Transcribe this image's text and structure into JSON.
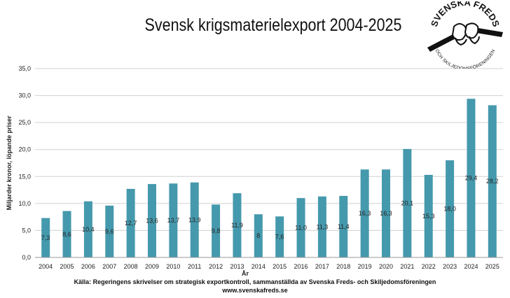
{
  "chart_data": {
    "type": "bar",
    "title": "Svensk krigsmaterielexport 2004-2025",
    "xlabel": "År",
    "ylabel": "Miljarder kronor, löpande priser",
    "ylim": [
      0,
      35
    ],
    "yticks": [
      "0,0",
      "5,0",
      "10,0",
      "15,0",
      "20,0",
      "25,0",
      "30,0",
      "35,0"
    ],
    "grid": true,
    "bar_color": "#4599ad",
    "categories": [
      "2004",
      "2005",
      "2006",
      "2007",
      "2008",
      "2009",
      "2010",
      "2011",
      "2012",
      "2013",
      "2014",
      "2015",
      "2016",
      "2017",
      "2018",
      "2019",
      "2020",
      "2021",
      "2022",
      "2023",
      "2024",
      "2025"
    ],
    "values": [
      7.3,
      8.6,
      10.4,
      9.6,
      12.7,
      13.6,
      13.7,
      13.9,
      9.8,
      11.9,
      8,
      7.6,
      11.0,
      11.3,
      11.4,
      16.3,
      16.3,
      20.1,
      15.3,
      18.0,
      29.4,
      28.2
    ],
    "data_labels": [
      "7,3",
      "8,6",
      "10,4",
      "9,6",
      "12,7",
      "13,6",
      "13,7",
      "13,9",
      "9,8",
      "11,9",
      "8",
      "7,6",
      "11,0",
      "11,3",
      "11,4",
      "16,3",
      "16,3",
      "20,1",
      "15,3",
      "18,0",
      "29,4",
      "28,2"
    ]
  },
  "source_line1": "Källa: Regeringens skrivelser om strategisk exportkontroll, sammanställda av Svenska Freds- och Skiljedomsföreningen",
  "source_line2": "www.svenskafreds.se",
  "logo": {
    "icon": "broken-rifle-logo-icon",
    "top_text": "SVENSKA FREDS",
    "bottom_text": "OCH SKILJEDOMSFÖRENINGEN"
  }
}
